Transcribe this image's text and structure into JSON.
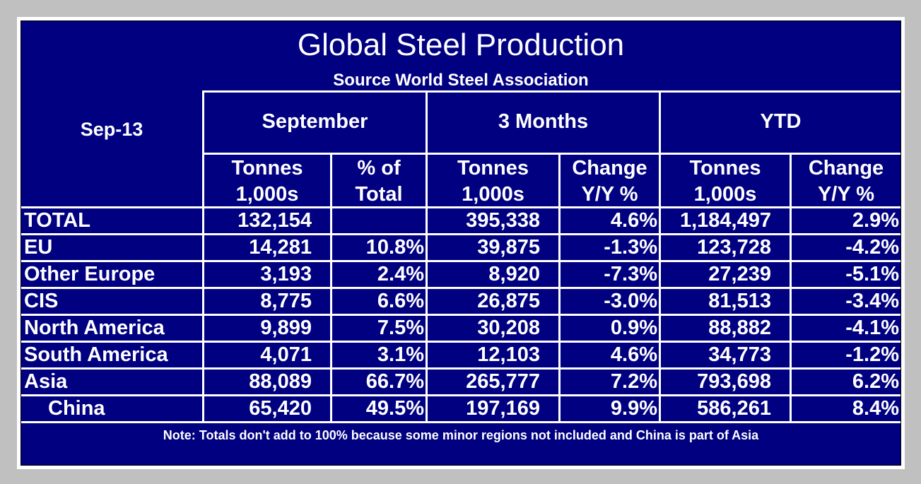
{
  "title": "Global Steel Production",
  "subtitle": "Source World Steel Association",
  "period": "Sep-13",
  "groups": [
    "September",
    "3 Months",
    "YTD"
  ],
  "columns": [
    [
      "Tonnes",
      "1,000s"
    ],
    [
      "% of",
      "Total"
    ],
    [
      "Tonnes",
      "1,000s"
    ],
    [
      "Change",
      "Y/Y %"
    ],
    [
      "Tonnes",
      "1,000s"
    ],
    [
      "Change",
      "Y/Y %"
    ]
  ],
  "rows": [
    {
      "region": "TOTAL",
      "values": [
        "132,154",
        "",
        "395,338",
        "4.6%",
        "1,184,497",
        "2.9%"
      ]
    },
    {
      "region": "EU",
      "values": [
        "14,281",
        "10.8%",
        "39,875",
        "-1.3%",
        "123,728",
        "-4.2%"
      ]
    },
    {
      "region": "Other Europe",
      "values": [
        "3,193",
        "2.4%",
        "8,920",
        "-7.3%",
        "27,239",
        "-5.1%"
      ]
    },
    {
      "region": "CIS",
      "values": [
        "8,775",
        "6.6%",
        "26,875",
        "-3.0%",
        "81,513",
        "-3.4%"
      ]
    },
    {
      "region": "North America",
      "values": [
        "9,899",
        "7.5%",
        "30,208",
        "0.9%",
        "88,882",
        "-4.1%"
      ]
    },
    {
      "region": "South America",
      "values": [
        "4,071",
        "3.1%",
        "12,103",
        "4.6%",
        "34,773",
        "-1.2%"
      ]
    },
    {
      "region": "Asia",
      "values": [
        "88,089",
        "66.7%",
        "265,777",
        "7.2%",
        "793,698",
        "6.2%"
      ]
    },
    {
      "region": "China",
      "values": [
        "65,420",
        "49.5%",
        "197,169",
        "9.9%",
        "586,261",
        "8.4%"
      ],
      "indent": true
    }
  ],
  "note": "Note: Totals don't add to 100% because some minor  regions not included and China is part of Asia",
  "colors": {
    "background": "#000080",
    "text": "#ffffff",
    "grid": "#ffffff",
    "frame": "#c0c0c0"
  }
}
